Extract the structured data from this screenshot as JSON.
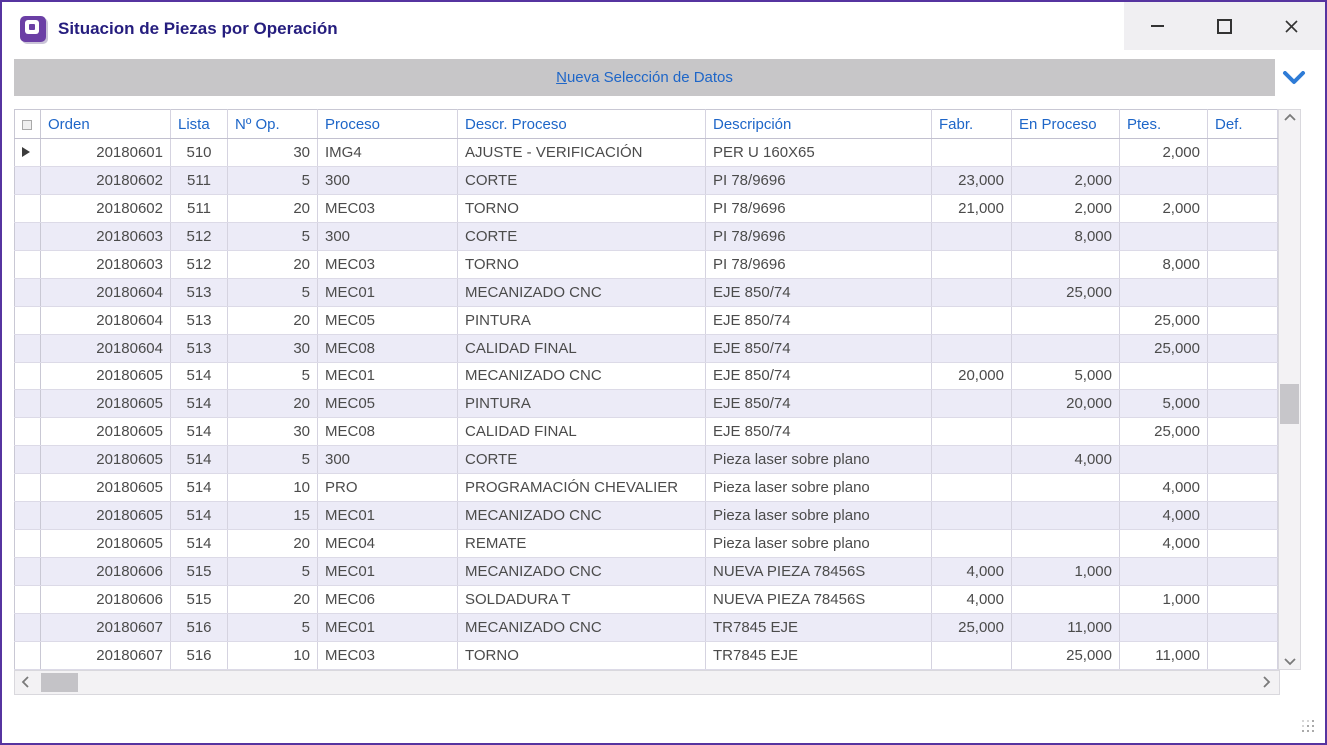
{
  "window": {
    "title": "Situacion de Piezas por Operación",
    "icon": "app-window-icon",
    "controls": [
      "minimize",
      "maximize",
      "close"
    ]
  },
  "command_bar": {
    "new_selection_label": "Nueva Selección de Datos",
    "expand_icon": "chevron-down-icon"
  },
  "colors": {
    "window_border": "#5634a0",
    "title_text": "#251d7e",
    "accent_blue": "#1e66c8",
    "command_bar_bg": "#c7c6c8",
    "row_alt_bg": "#ecebf7",
    "cell_text": "#4b4b4b",
    "grid_line": "#d5d3e0"
  },
  "table": {
    "current_row_index": 0,
    "columns": [
      {
        "label": "Orden",
        "align": "r"
      },
      {
        "label": "Lista",
        "align": "c"
      },
      {
        "label": "Nº Op.",
        "align": "r"
      },
      {
        "label": "Proceso",
        "align": "l"
      },
      {
        "label": "Descr. Proceso",
        "align": "l"
      },
      {
        "label": "Descripción",
        "align": "l"
      },
      {
        "label": "Fabr.",
        "align": "r"
      },
      {
        "label": "En Proceso",
        "align": "r"
      },
      {
        "label": "Ptes.",
        "align": "r"
      },
      {
        "label": "Def.",
        "align": "r"
      }
    ],
    "rows": [
      [
        "20180601",
        "510",
        "30",
        "IMG4",
        "AJUSTE - VERIFICACIÓN",
        "PER U 160X65",
        "",
        "",
        "2,000",
        ""
      ],
      [
        "20180602",
        "511",
        "5",
        "300",
        "CORTE",
        "PI 78/9696",
        "23,000",
        "2,000",
        "",
        ""
      ],
      [
        "20180602",
        "511",
        "20",
        "MEC03",
        "TORNO",
        "PI 78/9696",
        "21,000",
        "2,000",
        "2,000",
        ""
      ],
      [
        "20180603",
        "512",
        "5",
        "300",
        "CORTE",
        "PI 78/9696",
        "",
        "8,000",
        "",
        ""
      ],
      [
        "20180603",
        "512",
        "20",
        "MEC03",
        "TORNO",
        "PI 78/9696",
        "",
        "",
        "8,000",
        ""
      ],
      [
        "20180604",
        "513",
        "5",
        "MEC01",
        "MECANIZADO CNC",
        "EJE 850/74",
        "",
        "25,000",
        "",
        ""
      ],
      [
        "20180604",
        "513",
        "20",
        "MEC05",
        "PINTURA",
        "EJE 850/74",
        "",
        "",
        "25,000",
        ""
      ],
      [
        "20180604",
        "513",
        "30",
        "MEC08",
        "CALIDAD FINAL",
        "EJE 850/74",
        "",
        "",
        "25,000",
        ""
      ],
      [
        "20180605",
        "514",
        "5",
        "MEC01",
        "MECANIZADO CNC",
        "EJE 850/74",
        "20,000",
        "5,000",
        "",
        ""
      ],
      [
        "20180605",
        "514",
        "20",
        "MEC05",
        "PINTURA",
        "EJE 850/74",
        "",
        "20,000",
        "5,000",
        ""
      ],
      [
        "20180605",
        "514",
        "30",
        "MEC08",
        "CALIDAD FINAL",
        "EJE 850/74",
        "",
        "",
        "25,000",
        ""
      ],
      [
        "20180605",
        "514",
        "5",
        "300",
        "CORTE",
        "Pieza laser sobre plano",
        "",
        "4,000",
        "",
        ""
      ],
      [
        "20180605",
        "514",
        "10",
        "PRO",
        "PROGRAMACIÓN CHEVALIER",
        "Pieza laser sobre plano",
        "",
        "",
        "4,000",
        ""
      ],
      [
        "20180605",
        "514",
        "15",
        "MEC01",
        "MECANIZADO CNC",
        "Pieza laser sobre plano",
        "",
        "",
        "4,000",
        ""
      ],
      [
        "20180605",
        "514",
        "20",
        "MEC04",
        "REMATE",
        "Pieza laser sobre plano",
        "",
        "",
        "4,000",
        ""
      ],
      [
        "20180606",
        "515",
        "5",
        "MEC01",
        "MECANIZADO CNC",
        "NUEVA PIEZA 78456S",
        "4,000",
        "1,000",
        "",
        ""
      ],
      [
        "20180606",
        "515",
        "20",
        "MEC06",
        "SOLDADURA T",
        "NUEVA PIEZA 78456S",
        "4,000",
        "",
        "1,000",
        ""
      ],
      [
        "20180607",
        "516",
        "5",
        "MEC01",
        "MECANIZADO CNC",
        "TR7845 EJE",
        "25,000",
        "11,000",
        "",
        ""
      ],
      [
        "20180607",
        "516",
        "10",
        "MEC03",
        "TORNO",
        "TR7845 EJE",
        "",
        "25,000",
        "11,000",
        ""
      ]
    ]
  }
}
